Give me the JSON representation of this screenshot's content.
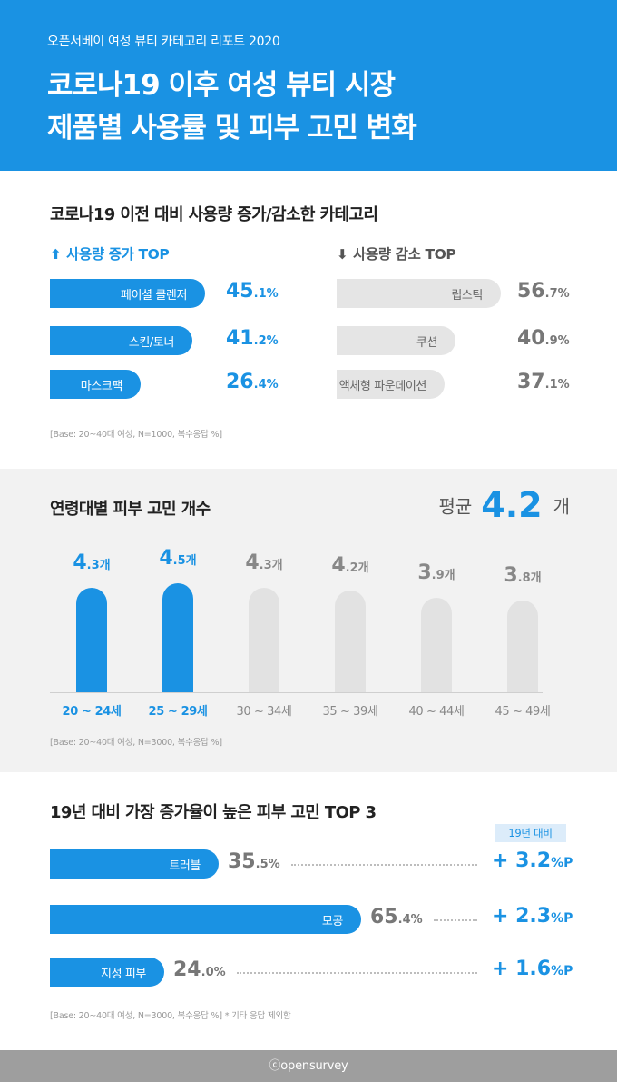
{
  "header": {
    "subtitle": "오픈서베이 여성 뷰티 카테고리 리포트 2020",
    "title_line1": "코로나19 이후 여성 뷰티 시장",
    "title_line2": "제품별 사용률 및 피부 고민 변화"
  },
  "section1": {
    "title": "코로나19 이전 대비 사용량 증가/감소한 카테고리",
    "increase_heading": "사용량 증가 TOP",
    "decrease_heading": "사용량 감소 TOP",
    "base": "[Base: 20~40대 여성, N=1000, 복수응답 %]"
  },
  "section2": {
    "title": "연령대별 피부 고민 개수",
    "avg_label": "평균",
    "avg_value": "4.2",
    "avg_unit": "개",
    "base": "[Base: 20~40대 여성, N=3000, 복수응답 %]"
  },
  "section3": {
    "title": "19년 대비 가장 증가율이 높은 피부 고민 TOP 3",
    "badge": "19년 대비",
    "base": "[Base: 20~40대 여성, N=3000, 복수응답 %] * 기타 응답 제외함"
  },
  "footer": {
    "text": "ⓒopensurvey"
  },
  "colors": {
    "accent": "#1a92e3",
    "bar_grey": "#e2e2e2",
    "footer": "#9e9e9e"
  },
  "icons": {
    "increase": "arrow-up-icon",
    "decrease": "arrow-down-icon"
  },
  "chart_data": [
    {
      "type": "bar",
      "orientation": "horizontal",
      "title": "사용량 증가 TOP",
      "categories": [
        "페이셜 클렌저",
        "스킨/토너",
        "마스크팩"
      ],
      "values": [
        45.1,
        41.2,
        26.4
      ],
      "labels": [
        {
          "main": "45",
          "decimal": ".1%"
        },
        {
          "main": "41",
          "decimal": ".2%"
        },
        {
          "main": "26",
          "decimal": ".4%"
        }
      ]
    },
    {
      "type": "bar",
      "orientation": "horizontal",
      "title": "사용량 감소 TOP",
      "categories": [
        "립스틱",
        "쿠션",
        "액체형 파운데이션"
      ],
      "values": [
        56.7,
        40.9,
        37.1
      ],
      "labels": [
        {
          "main": "56",
          "decimal": ".7%"
        },
        {
          "main": "40",
          "decimal": ".9%"
        },
        {
          "main": "37",
          "decimal": ".1%"
        }
      ]
    },
    {
      "type": "bar",
      "orientation": "vertical",
      "title": "연령대별 피부 고민 개수",
      "categories": [
        "20 ~ 24세",
        "25 ~ 29세",
        "30 ~ 34세",
        "35 ~ 39세",
        "40 ~ 44세",
        "45 ~ 49세"
      ],
      "values": [
        4.3,
        4.5,
        4.3,
        4.2,
        3.9,
        3.8
      ],
      "highlighted": [
        true,
        true,
        false,
        false,
        false,
        false
      ],
      "labels": [
        {
          "main": "4",
          "decimal": ".3개"
        },
        {
          "main": "4",
          "decimal": ".5개"
        },
        {
          "main": "4",
          "decimal": ".3개"
        },
        {
          "main": "4",
          "decimal": ".2개"
        },
        {
          "main": "3",
          "decimal": ".9개"
        },
        {
          "main": "3",
          "decimal": ".8개"
        }
      ]
    },
    {
      "type": "bar",
      "orientation": "horizontal",
      "title": "19년 대비 가장 증가율이 높은 피부 고민 TOP 3",
      "categories": [
        "트러블",
        "모공",
        "지성 피부"
      ],
      "values": [
        35.5,
        65.4,
        24.0
      ],
      "labels": [
        {
          "main": "35",
          "decimal": ".5%"
        },
        {
          "main": "65",
          "decimal": ".4%"
        },
        {
          "main": "24",
          "decimal": ".0%"
        }
      ],
      "change_vs_2019": [
        3.2,
        2.3,
        1.6
      ],
      "change_labels": [
        {
          "main": "+ 3.2",
          "unit": "%P"
        },
        {
          "main": "+ 2.3",
          "unit": "%P"
        },
        {
          "main": "+ 1.6",
          "unit": "%P"
        }
      ]
    }
  ]
}
